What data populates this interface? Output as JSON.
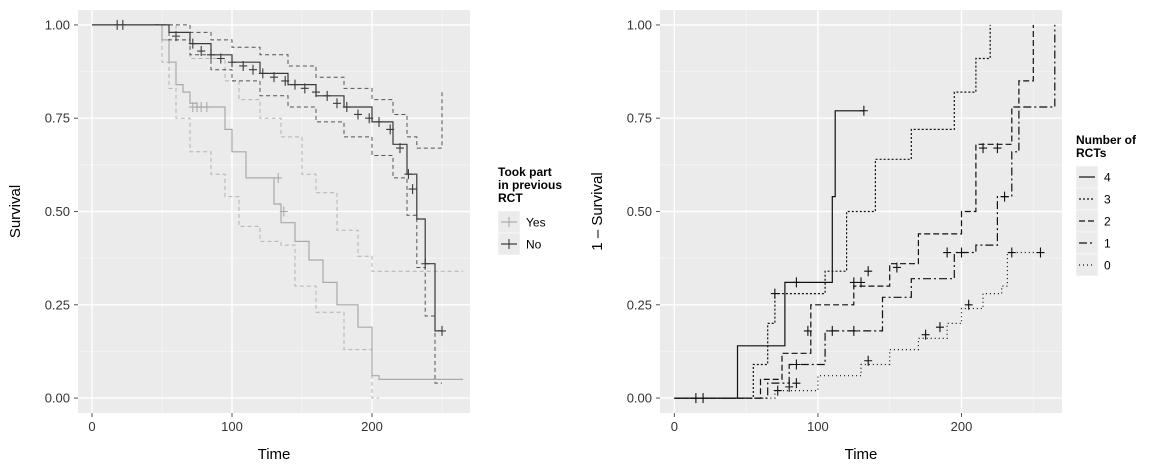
{
  "chart_data": [
    {
      "type": "line",
      "subtype": "step",
      "xlabel": "Time",
      "ylabel": "Survival",
      "xlim": [
        -10,
        270
      ],
      "ylim": [
        -0.04,
        1.04
      ],
      "xticks": [
        0,
        100,
        200
      ],
      "yticks": [
        "0.00",
        "0.25",
        "0.50",
        "0.75",
        "1.00"
      ],
      "grid": true,
      "legend": {
        "title": [
          "Took part",
          "in previous",
          "RCT"
        ],
        "position": "right"
      },
      "colors": {
        "Yes": "#a9a9a9",
        "No": "#3a3a3a",
        "panel": "#ebebeb"
      },
      "series": [
        {
          "name": "Yes",
          "steps": [
            [
              0,
              1.0
            ],
            [
              45,
              1.0
            ],
            [
              50,
              0.96
            ],
            [
              55,
              0.9
            ],
            [
              60,
              0.84
            ],
            [
              65,
              0.82
            ],
            [
              70,
              0.79
            ],
            [
              75,
              0.78
            ],
            [
              95,
              0.72
            ],
            [
              100,
              0.66
            ],
            [
              110,
              0.59
            ],
            [
              130,
              0.52
            ],
            [
              135,
              0.47
            ],
            [
              145,
              0.42
            ],
            [
              155,
              0.37
            ],
            [
              165,
              0.31
            ],
            [
              175,
              0.25
            ],
            [
              190,
              0.19
            ],
            [
              200,
              0.06
            ],
            [
              205,
              0.05
            ],
            [
              265,
              0.05
            ]
          ],
          "censored": [
            [
              72,
              0.78
            ],
            [
              75,
              0.78
            ],
            [
              78,
              0.78
            ],
            [
              82,
              0.78
            ],
            [
              133,
              0.59
            ],
            [
              137,
              0.5
            ]
          ],
          "ci_lower": [
            [
              45,
              1.0
            ],
            [
              50,
              0.9
            ],
            [
              55,
              0.83
            ],
            [
              60,
              0.75
            ],
            [
              70,
              0.66
            ],
            [
              85,
              0.6
            ],
            [
              95,
              0.54
            ],
            [
              105,
              0.46
            ],
            [
              120,
              0.42
            ],
            [
              135,
              0.41
            ],
            [
              145,
              0.3
            ],
            [
              160,
              0.23
            ],
            [
              180,
              0.13
            ],
            [
              200,
              0.0
            ],
            [
              205,
              0.0
            ]
          ],
          "ci_upper": [
            [
              45,
              1.0
            ],
            [
              50,
              1.0
            ],
            [
              60,
              0.96
            ],
            [
              70,
              0.91
            ],
            [
              95,
              0.85
            ],
            [
              105,
              0.8
            ],
            [
              120,
              0.75
            ],
            [
              135,
              0.7
            ],
            [
              150,
              0.6
            ],
            [
              160,
              0.55
            ],
            [
              175,
              0.45
            ],
            [
              190,
              0.38
            ],
            [
              200,
              0.34
            ],
            [
              205,
              0.34
            ],
            [
              265,
              0.34
            ]
          ]
        },
        {
          "name": "No",
          "steps": [
            [
              0,
              1.0
            ],
            [
              45,
              1.0
            ],
            [
              55,
              0.98
            ],
            [
              70,
              0.95
            ],
            [
              85,
              0.92
            ],
            [
              100,
              0.9
            ],
            [
              120,
              0.87
            ],
            [
              140,
              0.84
            ],
            [
              160,
              0.81
            ],
            [
              180,
              0.78
            ],
            [
              200,
              0.74
            ],
            [
              215,
              0.68
            ],
            [
              225,
              0.6
            ],
            [
              232,
              0.48
            ],
            [
              238,
              0.36
            ],
            [
              245,
              0.18
            ],
            [
              250,
              0.18
            ]
          ],
          "censored": [
            [
              18,
              1.0
            ],
            [
              22,
              1.0
            ],
            [
              60,
              0.97
            ],
            [
              72,
              0.95
            ],
            [
              78,
              0.93
            ],
            [
              85,
              0.92
            ],
            [
              92,
              0.91
            ],
            [
              100,
              0.9
            ],
            [
              108,
              0.89
            ],
            [
              115,
              0.88
            ],
            [
              122,
              0.87
            ],
            [
              130,
              0.86
            ],
            [
              138,
              0.85
            ],
            [
              145,
              0.84
            ],
            [
              152,
              0.83
            ],
            [
              160,
              0.82
            ],
            [
              168,
              0.81
            ],
            [
              175,
              0.79
            ],
            [
              182,
              0.78
            ],
            [
              190,
              0.76
            ],
            [
              198,
              0.75
            ],
            [
              205,
              0.74
            ],
            [
              213,
              0.72
            ],
            [
              220,
              0.67
            ],
            [
              226,
              0.6
            ],
            [
              229,
              0.56
            ],
            [
              238,
              0.36
            ],
            [
              250,
              0.18
            ]
          ],
          "ci_lower": [
            [
              45,
              1.0
            ],
            [
              55,
              0.96
            ],
            [
              70,
              0.92
            ],
            [
              85,
              0.88
            ],
            [
              100,
              0.85
            ],
            [
              120,
              0.81
            ],
            [
              140,
              0.78
            ],
            [
              160,
              0.74
            ],
            [
              180,
              0.7
            ],
            [
              200,
              0.65
            ],
            [
              215,
              0.59
            ],
            [
              225,
              0.49
            ],
            [
              232,
              0.35
            ],
            [
              238,
              0.22
            ],
            [
              245,
              0.04
            ],
            [
              250,
              0.04
            ]
          ],
          "ci_upper": [
            [
              45,
              1.0
            ],
            [
              55,
              1.0
            ],
            [
              70,
              0.98
            ],
            [
              85,
              0.96
            ],
            [
              100,
              0.94
            ],
            [
              120,
              0.92
            ],
            [
              140,
              0.89
            ],
            [
              160,
              0.86
            ],
            [
              180,
              0.83
            ],
            [
              200,
              0.8
            ],
            [
              215,
              0.76
            ],
            [
              225,
              0.7
            ],
            [
              232,
              0.67
            ],
            [
              245,
              0.67
            ],
            [
              250,
              0.82
            ]
          ]
        }
      ]
    },
    {
      "type": "line",
      "subtype": "step",
      "xlabel": "Time",
      "ylabel": "1 – Survival",
      "xlim": [
        -10,
        270
      ],
      "ylim": [
        -0.04,
        1.04
      ],
      "xticks": [
        0,
        100,
        200
      ],
      "yticks": [
        "0.00",
        "0.25",
        "0.50",
        "0.75",
        "1.00"
      ],
      "grid": true,
      "legend": {
        "title": [
          "Number of",
          "RCTs"
        ],
        "position": "right"
      },
      "series": [
        {
          "name": "4",
          "dash": "",
          "steps": [
            [
              0,
              0.0
            ],
            [
              42,
              0.0
            ],
            [
              44,
              0.14
            ],
            [
              75,
              0.14
            ],
            [
              77,
              0.31
            ],
            [
              108,
              0.31
            ],
            [
              110,
              0.54
            ],
            [
              112,
              0.77
            ],
            [
              132,
              0.77
            ]
          ],
          "censored": [
            [
              15,
              0.0
            ],
            [
              20,
              0.0
            ],
            [
              85,
              0.31
            ],
            [
              132,
              0.77
            ]
          ]
        },
        {
          "name": "3",
          "dash": "2,2",
          "steps": [
            [
              0,
              0.0
            ],
            [
              45,
              0.0
            ],
            [
              55,
              0.09
            ],
            [
              65,
              0.2
            ],
            [
              70,
              0.28
            ],
            [
              105,
              0.34
            ],
            [
              120,
              0.5
            ],
            [
              140,
              0.64
            ],
            [
              165,
              0.72
            ],
            [
              195,
              0.82
            ],
            [
              210,
              0.91
            ],
            [
              220,
              1.0
            ]
          ],
          "censored": [
            [
              70,
              0.28
            ],
            [
              135,
              0.34
            ]
          ]
        },
        {
          "name": "2",
          "dash": "6,3",
          "steps": [
            [
              0,
              0.0
            ],
            [
              48,
              0.0
            ],
            [
              60,
              0.05
            ],
            [
              75,
              0.12
            ],
            [
              95,
              0.25
            ],
            [
              125,
              0.3
            ],
            [
              150,
              0.36
            ],
            [
              170,
              0.44
            ],
            [
              200,
              0.5
            ],
            [
              210,
              0.68
            ],
            [
              235,
              0.78
            ],
            [
              240,
              0.85
            ],
            [
              250,
              1.0
            ]
          ],
          "censored": [
            [
              93,
              0.18
            ],
            [
              125,
              0.31
            ],
            [
              130,
              0.31
            ],
            [
              155,
              0.35
            ],
            [
              215,
              0.67
            ],
            [
              225,
              0.67
            ]
          ]
        },
        {
          "name": "1",
          "dash": "8,3,2,3",
          "steps": [
            [
              0,
              0.0
            ],
            [
              50,
              0.0
            ],
            [
              65,
              0.04
            ],
            [
              80,
              0.09
            ],
            [
              105,
              0.18
            ],
            [
              130,
              0.18
            ],
            [
              145,
              0.27
            ],
            [
              165,
              0.32
            ],
            [
              195,
              0.39
            ],
            [
              210,
              0.41
            ],
            [
              225,
              0.54
            ],
            [
              235,
              0.66
            ],
            [
              240,
              0.78
            ],
            [
              265,
              1.0
            ]
          ],
          "censored": [
            [
              85,
              0.09
            ],
            [
              110,
              0.18
            ],
            [
              125,
              0.18
            ],
            [
              190,
              0.39
            ],
            [
              200,
              0.39
            ],
            [
              230,
              0.54
            ]
          ]
        },
        {
          "name": "0",
          "dash": "1,3",
          "steps": [
            [
              0,
              0.0
            ],
            [
              50,
              0.0
            ],
            [
              70,
              0.02
            ],
            [
              100,
              0.06
            ],
            [
              130,
              0.09
            ],
            [
              150,
              0.13
            ],
            [
              170,
              0.16
            ],
            [
              190,
              0.2
            ],
            [
              200,
              0.24
            ],
            [
              215,
              0.28
            ],
            [
              228,
              0.3
            ],
            [
              232,
              0.39
            ],
            [
              255,
              0.39
            ]
          ],
          "censored": [
            [
              72,
              0.02
            ],
            [
              80,
              0.03
            ],
            [
              85,
              0.04
            ],
            [
              135,
              0.1
            ],
            [
              175,
              0.17
            ],
            [
              185,
              0.19
            ],
            [
              205,
              0.25
            ],
            [
              235,
              0.39
            ],
            [
              255,
              0.39
            ]
          ]
        }
      ]
    }
  ]
}
